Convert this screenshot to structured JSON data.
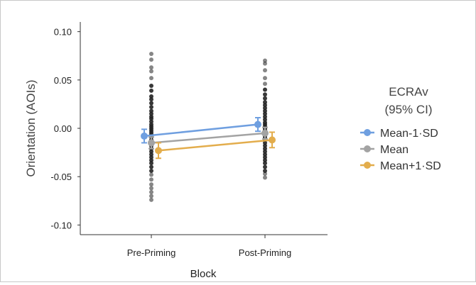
{
  "chart_data": {
    "type": "scatter",
    "xlabel": "Block",
    "ylabel": "Orientation  (AOIs)",
    "categories": [
      "Pre-Priming",
      "Post-Priming"
    ],
    "ylim": [
      -0.11,
      0.11
    ],
    "yticks": [
      0.1,
      0.05,
      0.0,
      -0.05,
      -0.1
    ],
    "ytick_labels": [
      "0.10",
      "0.05",
      "0.00",
      "-0.05",
      "-0.10"
    ],
    "grid": false,
    "legend": {
      "title_lines": [
        "ECRAv",
        "(95% CI)"
      ],
      "placement": "right"
    },
    "series": [
      {
        "name": "Mean-1·SD",
        "color": "#6f9fe0",
        "values": [
          -0.008,
          0.004
        ],
        "ci_low": [
          -0.015,
          -0.003
        ],
        "ci_high": [
          -0.001,
          0.011
        ]
      },
      {
        "name": "Mean",
        "color": "#a3a3a3",
        "values": [
          -0.015,
          -0.005
        ],
        "ci_low": [
          -0.021,
          -0.011
        ],
        "ci_high": [
          -0.009,
          0.001
        ]
      },
      {
        "name": "Mean+1·SD",
        "color": "#e3ad4c",
        "values": [
          -0.023,
          -0.012
        ],
        "ci_low": [
          -0.031,
          -0.02
        ],
        "ci_high": [
          -0.015,
          -0.004
        ]
      }
    ],
    "raw_points": {
      "color": "#222222",
      "Pre-Priming": [
        0.077,
        0.071,
        0.063,
        0.059,
        0.052,
        0.044,
        0.039,
        0.033,
        0.03,
        0.026,
        0.022,
        0.018,
        0.015,
        0.012,
        0.01,
        0.007,
        0.004,
        0.002,
        0.0,
        -0.002,
        -0.004,
        -0.006,
        -0.009,
        -0.012,
        -0.015,
        -0.018,
        -0.021,
        -0.024,
        -0.027,
        -0.03,
        -0.033,
        -0.036,
        -0.04,
        -0.044,
        -0.048,
        -0.053,
        -0.058,
        -0.062,
        -0.066,
        -0.07,
        -0.074
      ],
      "Post-Priming": [
        0.07,
        0.067,
        0.06,
        0.052,
        0.046,
        0.04,
        0.035,
        0.031,
        0.027,
        0.024,
        0.021,
        0.018,
        0.015,
        0.012,
        0.009,
        0.006,
        0.004,
        0.002,
        0.0,
        -0.002,
        -0.004,
        -0.007,
        -0.009,
        -0.012,
        -0.015,
        -0.018,
        -0.021,
        -0.024,
        -0.027,
        -0.03,
        -0.033,
        -0.036,
        -0.04,
        -0.044,
        -0.047,
        -0.051
      ]
    }
  }
}
